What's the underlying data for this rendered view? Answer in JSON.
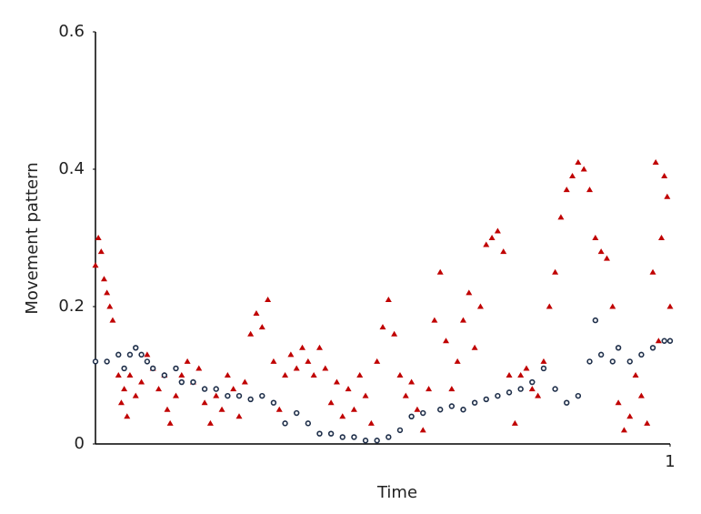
{
  "chart_data": {
    "type": "scatter",
    "x_label": "Time",
    "y_label": "Movement pattern",
    "xlim": [
      0,
      1
    ],
    "xticks": [
      1
    ],
    "ylim": [
      0,
      0.6
    ],
    "yticks": [
      0,
      0.2,
      0.4,
      0.6
    ],
    "grid": false,
    "series": [
      {
        "color": "#c00000",
        "marker": "triangle",
        "x": [
          0,
          0.005,
          0.01,
          0.015,
          0.02,
          0.025,
          0.03,
          0.04,
          0.045,
          0.05,
          0.055,
          0.06,
          0.07,
          0.08,
          0.09,
          0.1,
          0.11,
          0.12,
          0.125,
          0.13,
          0.14,
          0.15,
          0.16,
          0.17,
          0.18,
          0.19,
          0.2,
          0.21,
          0.22,
          0.23,
          0.24,
          0.25,
          0.26,
          0.27,
          0.28,
          0.29,
          0.3,
          0.31,
          0.32,
          0.33,
          0.34,
          0.35,
          0.36,
          0.37,
          0.38,
          0.39,
          0.4,
          0.41,
          0.42,
          0.43,
          0.44,
          0.45,
          0.46,
          0.47,
          0.48,
          0.49,
          0.5,
          0.51,
          0.52,
          0.53,
          0.54,
          0.55,
          0.56,
          0.57,
          0.58,
          0.59,
          0.6,
          0.61,
          0.62,
          0.63,
          0.64,
          0.65,
          0.66,
          0.67,
          0.68,
          0.69,
          0.7,
          0.71,
          0.72,
          0.73,
          0.74,
          0.75,
          0.76,
          0.77,
          0.78,
          0.79,
          0.8,
          0.81,
          0.82,
          0.83,
          0.84,
          0.85,
          0.86,
          0.87,
          0.88,
          0.89,
          0.9,
          0.91,
          0.92,
          0.93,
          0.94,
          0.95,
          0.96,
          0.97,
          0.975,
          0.98,
          0.985,
          0.99,
          0.995,
          1
        ],
        "values": [
          0.26,
          0.3,
          0.28,
          0.24,
          0.22,
          0.2,
          0.18,
          0.1,
          0.06,
          0.08,
          0.04,
          0.1,
          0.07,
          0.09,
          0.13,
          0.11,
          0.08,
          0.1,
          0.05,
          0.03,
          0.07,
          0.1,
          0.12,
          0.09,
          0.11,
          0.06,
          0.03,
          0.07,
          0.05,
          0.1,
          0.08,
          0.04,
          0.09,
          0.16,
          0.19,
          0.17,
          0.21,
          0.12,
          0.05,
          0.1,
          0.13,
          0.11,
          0.14,
          0.12,
          0.1,
          0.14,
          0.11,
          0.06,
          0.09,
          0.04,
          0.08,
          0.05,
          0.1,
          0.07,
          0.03,
          0.12,
          0.17,
          0.21,
          0.16,
          0.1,
          0.07,
          0.09,
          0.05,
          0.02,
          0.08,
          0.18,
          0.25,
          0.15,
          0.08,
          0.12,
          0.18,
          0.22,
          0.14,
          0.2,
          0.29,
          0.3,
          0.31,
          0.28,
          0.1,
          0.03,
          0.1,
          0.11,
          0.08,
          0.07,
          0.12,
          0.2,
          0.25,
          0.33,
          0.37,
          0.39,
          0.41,
          0.4,
          0.37,
          0.3,
          0.28,
          0.27,
          0.2,
          0.06,
          0.02,
          0.04,
          0.1,
          0.07,
          0.03,
          0.25,
          0.41,
          0.15,
          0.3,
          0.39,
          0.36,
          0.2
        ]
      },
      {
        "color": "#1f2f4a",
        "marker": "circle",
        "x": [
          0,
          0.02,
          0.04,
          0.05,
          0.06,
          0.07,
          0.08,
          0.09,
          0.1,
          0.12,
          0.14,
          0.15,
          0.17,
          0.19,
          0.21,
          0.23,
          0.25,
          0.27,
          0.29,
          0.31,
          0.33,
          0.35,
          0.37,
          0.39,
          0.41,
          0.43,
          0.45,
          0.47,
          0.49,
          0.51,
          0.53,
          0.55,
          0.57,
          0.6,
          0.62,
          0.64,
          0.66,
          0.68,
          0.7,
          0.72,
          0.74,
          0.76,
          0.78,
          0.8,
          0.82,
          0.84,
          0.86,
          0.87,
          0.88,
          0.9,
          0.91,
          0.93,
          0.95,
          0.97,
          0.99,
          1
        ],
        "values": [
          0.12,
          0.12,
          0.13,
          0.11,
          0.13,
          0.14,
          0.13,
          0.12,
          0.11,
          0.1,
          0.11,
          0.09,
          0.09,
          0.08,
          0.08,
          0.07,
          0.07,
          0.065,
          0.07,
          0.06,
          0.03,
          0.045,
          0.03,
          0.015,
          0.015,
          0.01,
          0.01,
          0.005,
          0.005,
          0.01,
          0.02,
          0.04,
          0.045,
          0.05,
          0.055,
          0.05,
          0.06,
          0.065,
          0.07,
          0.075,
          0.08,
          0.09,
          0.11,
          0.08,
          0.06,
          0.07,
          0.12,
          0.18,
          0.13,
          0.12,
          0.14,
          0.12,
          0.13,
          0.14,
          0.15,
          0.15
        ]
      }
    ]
  }
}
